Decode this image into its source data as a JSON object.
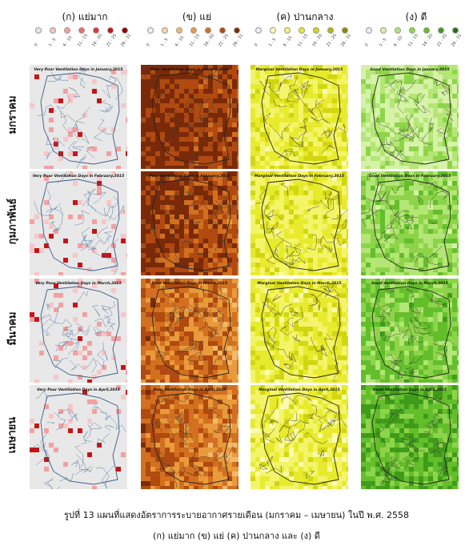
{
  "columns": [
    {
      "label": "(ก) แย่มาก",
      "colors": [
        "#e8e8e8",
        "#f7c6c6",
        "#f3a0a0",
        "#ee6a6a",
        "#e03535",
        "#c41515",
        "#8b0000"
      ]
    },
    {
      "label": "(ข) แย่",
      "colors": [
        "#eeeeee",
        "#f8d9a8",
        "#f2b96a",
        "#e99a3a",
        "#d27020",
        "#b04a10",
        "#7a2a08"
      ]
    },
    {
      "label": "(ค) ปานกลาง",
      "colors": [
        "#eeeeee",
        "#fbfbb0",
        "#f4f46a",
        "#e8ea2e",
        "#d2d610",
        "#b6b400",
        "#8e8a00"
      ]
    },
    {
      "label": "(ง) ดี",
      "colors": [
        "#eeeeee",
        "#d6f2a8",
        "#b4e676",
        "#8ed44a",
        "#63be2c",
        "#3f9c1a",
        "#236f0c"
      ]
    }
  ],
  "legend_labels": [
    "0",
    "1 - 5",
    "6 - 10",
    "11 - 15",
    "16 - 20",
    "21 - 25",
    "26 - 31"
  ],
  "rows": [
    {
      "label": "มกราคม",
      "titles": [
        "Very Poor Ventilation Days in January,2015",
        "Poor Ventilation Days in January,2015",
        "Marginal Ventilation Days in January,2015",
        "Good Ventilation Days in January,2015"
      ]
    },
    {
      "label": "กุมภาพันธ์",
      "titles": [
        "Very Poor Ventilation Days in February,2015",
        "Poor Ventilation Days in February,2015",
        "Marginal Ventilation Days in February,2015",
        "Good Ventilation Days in February,2015"
      ]
    },
    {
      "label": "มีนาคม",
      "titles": [
        "Very Poor Ventilation Days in March,2015",
        "Poor Ventilation Days in March,2015",
        "Marginal Ventilation Days in March,2015",
        "Good Ventilation Days in March,2015"
      ]
    },
    {
      "label": "เมษายน",
      "titles": [
        "Very Poor Ventilation Days in April,2015",
        "Poor Ventilation Days in April,2015",
        "Marginal Ventilation Days in April,2015",
        "Good Ventilation Days in April,2015"
      ]
    }
  ],
  "map_intensity": [
    [
      0.15,
      0.85,
      0.45,
      0.3
    ],
    [
      0.15,
      0.75,
      0.45,
      0.45
    ],
    [
      0.12,
      0.55,
      0.45,
      0.55
    ],
    [
      0.12,
      0.55,
      0.42,
      0.7
    ]
  ],
  "caption": {
    "line1": "รูปที่ 13 แผนที่แสดงอัตราการระบายอากาศรายเดือน (มกราคม – เมษายน) ในปี พ.ศ. 2558",
    "line2": "(ก) แย่มาก (ข) แย่ (ค) ปานกลาง และ (ง) ดี"
  }
}
